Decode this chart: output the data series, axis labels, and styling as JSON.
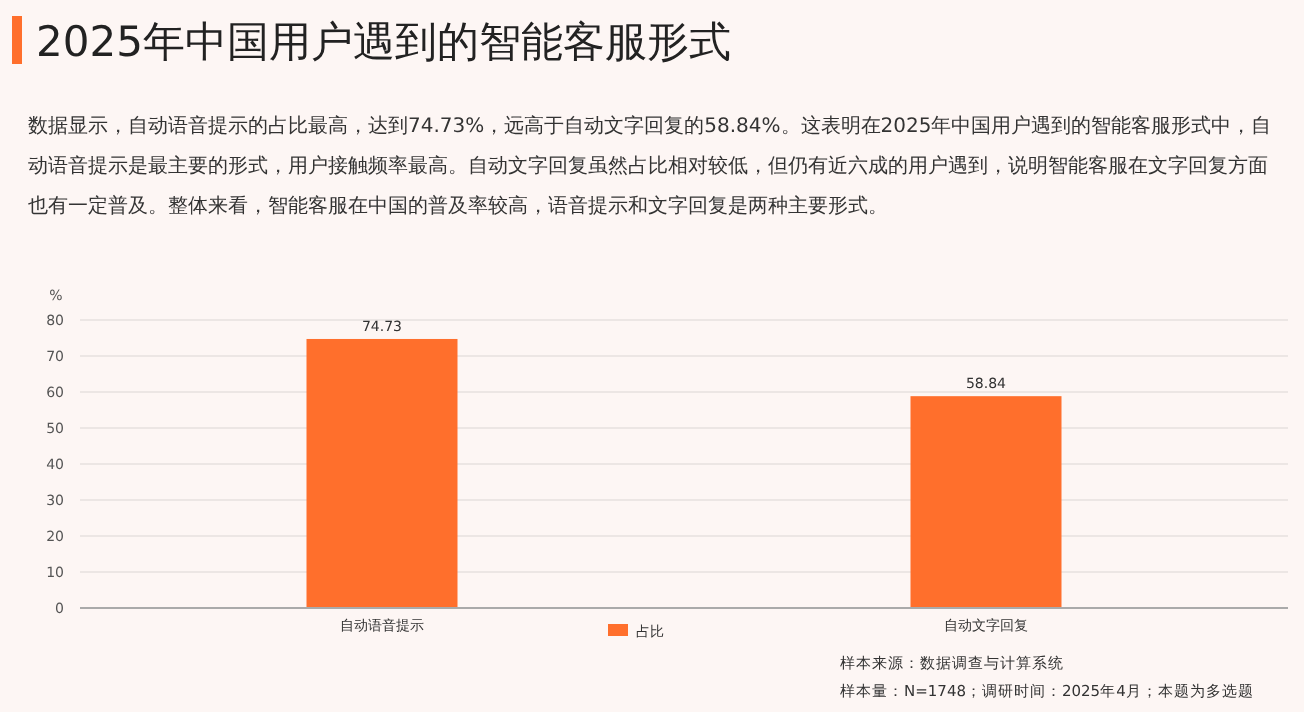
{
  "chart_data": {
    "type": "bar",
    "title": "2025年中国用户遇到的智能客服形式",
    "subtitle": "数据显示，自动语音提示的占比最高，达到74.73%，远高于自动文字回复的58.84%。这表明在2025年中国用户遇到的智能客服形式中，自动语音提示是最主要的形式，用户接触频率最高。自动文字回复虽然占比相对较低，但仍有近六成的用户遇到，说明智能客服在文字回复方面也有一定普及。整体来看，智能客服在中国的普及率较高，语音提示和文字回复是两种主要形式。",
    "ylabel": "%",
    "categories": [
      "自动语音提示",
      "自动文字回复"
    ],
    "series": [
      {
        "name": "占比",
        "color": "#ff6f2c",
        "values": [
          74.73,
          58.84
        ]
      }
    ],
    "ylim": [
      0,
      80
    ],
    "yticks": [
      0,
      10,
      20,
      30,
      40,
      50,
      60,
      70,
      80
    ],
    "grid": "y",
    "legend": "bottom",
    "data_labels": true,
    "annotations": [
      "样本来源：数据调查与计算系统",
      "样本量：N=1748；调研时间：2025年4月；本题为多选题"
    ]
  }
}
